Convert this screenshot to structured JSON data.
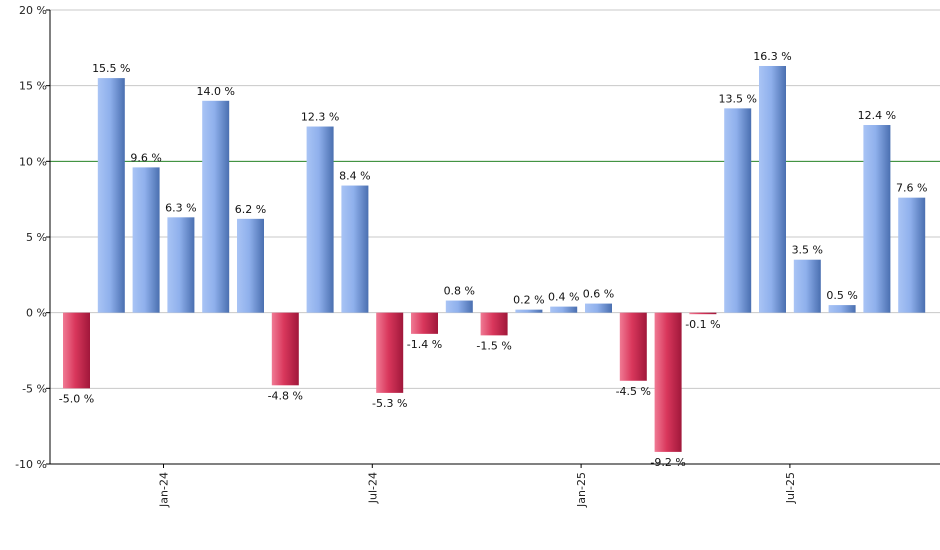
{
  "chart_data": {
    "type": "bar",
    "title": "",
    "xlabel": "",
    "ylabel": "",
    "ylim": [
      -10,
      20
    ],
    "y_ticks": [
      -10,
      -5,
      0,
      5,
      10,
      15,
      20
    ],
    "y_tick_labels": [
      "-10 %",
      "-5 %",
      "0 %",
      "5 %",
      "10 %",
      "15 %",
      "20 %"
    ],
    "grid": true,
    "reference_line": 10,
    "x_tick_labels": [
      {
        "index": 3,
        "label": "Jan-24"
      },
      {
        "index": 9,
        "label": "Jul-24"
      },
      {
        "index": 15,
        "label": "Jan-25"
      },
      {
        "index": 21,
        "label": "Jul-25"
      }
    ],
    "values": [
      -5.0,
      15.5,
      9.6,
      6.3,
      14.0,
      6.2,
      -4.8,
      12.3,
      8.4,
      -5.3,
      -1.4,
      0.8,
      -1.5,
      0.2,
      0.4,
      0.6,
      -4.5,
      -9.2,
      -0.1,
      13.5,
      16.3,
      3.5,
      0.5,
      12.4,
      7.6
    ],
    "data_labels": [
      "-5.0 %",
      "15.5 %",
      "9.6 %",
      "6.3 %",
      "14.0 %",
      "6.2 %",
      "-4.8 %",
      "12.3 %",
      "8.4 %",
      "-5.3 %",
      "-1.4 %",
      "0.8 %",
      "-1.5 %",
      "0.2 %",
      "0.4 %",
      "0.6 %",
      "-4.5 %",
      "-9.2 %",
      "-0.1 %",
      "13.5 %",
      "16.3 %",
      "3.5 %",
      "0.5 %",
      "12.4 %",
      "7.6 %"
    ],
    "colors": {
      "positive_light": "#a9c4f5",
      "positive_dark": "#4a6fb0",
      "negative_light": "#f07a94",
      "negative_dark": "#a0173a",
      "grid": "#c8c8c8",
      "reference_line": "#2e8b2e",
      "axis": "#000000"
    }
  }
}
